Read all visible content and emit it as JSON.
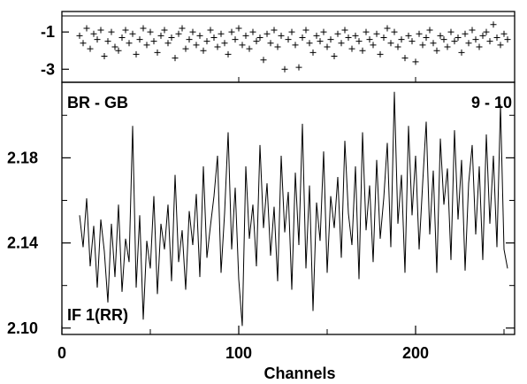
{
  "chart_data": [
    {
      "type": "scatter",
      "title": "",
      "xlabel": "",
      "ylabel": "",
      "xlim": [
        0,
        256
      ],
      "ylim": [
        -3.7,
        0.1
      ],
      "y_ticks": [
        -1,
        -3
      ],
      "y_tick_labels": [
        "-1",
        "-3"
      ],
      "marker": "+",
      "series": [
        {
          "x": [
            10,
            12,
            14,
            16,
            18,
            20,
            22,
            24,
            26,
            28,
            30,
            32,
            34,
            36,
            38,
            40,
            42,
            44,
            46,
            48,
            50,
            52,
            54,
            56,
            58,
            60,
            62,
            64,
            66,
            68,
            70,
            72,
            74,
            76,
            78,
            80,
            82,
            84,
            86,
            88,
            90,
            92,
            94,
            96,
            98,
            100,
            102,
            104,
            106,
            108,
            110,
            112,
            114,
            116,
            118,
            120,
            122,
            124,
            126,
            128,
            130,
            132,
            134,
            136,
            138,
            140,
            142,
            144,
            146,
            148,
            150,
            152,
            154,
            156,
            158,
            160,
            162,
            164,
            166,
            168,
            170,
            172,
            174,
            176,
            178,
            180,
            182,
            184,
            186,
            188,
            190,
            192,
            194,
            196,
            198,
            200,
            202,
            204,
            206,
            208,
            210,
            212,
            214,
            216,
            218,
            220,
            222,
            224,
            226,
            228,
            230,
            232,
            234,
            236,
            238,
            240,
            242,
            244,
            246,
            248,
            250,
            252
          ],
          "y": [
            -1.2,
            -1.6,
            -0.8,
            -1.9,
            -1.1,
            -1.4,
            -0.9,
            -2.3,
            -1.5,
            -1.0,
            -1.8,
            -2.0,
            -1.3,
            -0.9,
            -1.6,
            -1.1,
            -2.2,
            -1.4,
            -0.8,
            -1.7,
            -1.0,
            -1.5,
            -2.1,
            -1.2,
            -0.9,
            -1.6,
            -1.3,
            -2.4,
            -1.1,
            -0.8,
            -1.9,
            -1.4,
            -1.0,
            -1.7,
            -1.2,
            -2.0,
            -1.5,
            -0.9,
            -1.3,
            -1.8,
            -1.1,
            -1.6,
            -2.2,
            -1.0,
            -1.4,
            -0.8,
            -1.7,
            -1.2,
            -1.9,
            -1.0,
            -1.5,
            -1.3,
            -2.5,
            -1.1,
            -1.6,
            -0.9,
            -1.8,
            -1.2,
            -3.0,
            -1.4,
            -1.0,
            -1.7,
            -2.9,
            -1.3,
            -0.9,
            -1.6,
            -2.1,
            -1.2,
            -1.5,
            -1.0,
            -1.8,
            -1.4,
            -2.3,
            -1.1,
            -1.6,
            -0.9,
            -1.3,
            -1.9,
            -1.2,
            -1.5,
            -2.0,
            -1.0,
            -1.4,
            -1.7,
            -1.1,
            -2.2,
            -1.3,
            -0.8,
            -1.6,
            -1.0,
            -1.8,
            -1.4,
            -2.4,
            -1.2,
            -1.5,
            -2.6,
            -1.1,
            -1.7,
            -1.3,
            -0.9,
            -1.6,
            -2.0,
            -1.2,
            -1.4,
            -1.8,
            -1.0,
            -1.5,
            -1.3,
            -2.1,
            -1.1,
            -1.6,
            -0.9,
            -1.4,
            -1.8,
            -1.2,
            -1.0,
            -1.5,
            -0.6,
            -1.3,
            -1.7,
            -1.1,
            -1.4
          ]
        }
      ]
    },
    {
      "type": "line",
      "title": "",
      "xlabel": "Channels",
      "ylabel": "",
      "xlim": [
        0,
        256
      ],
      "ylim": [
        2.097,
        2.2155
      ],
      "x_ticks": [
        0,
        100,
        200
      ],
      "x_tick_labels": [
        "0",
        "100",
        "200"
      ],
      "y_ticks": [
        2.1,
        2.14,
        2.18
      ],
      "y_tick_labels": [
        "2.10",
        "2.14",
        "2.18"
      ],
      "annotations": {
        "top_left": "BR - GB",
        "top_right": "9 - 10",
        "bottom_left": "IF 1(RR)"
      },
      "series": [
        {
          "x": [
            10,
            12,
            14,
            16,
            18,
            20,
            22,
            24,
            26,
            28,
            30,
            32,
            34,
            36,
            38,
            40,
            42,
            44,
            46,
            48,
            50,
            52,
            54,
            56,
            58,
            60,
            62,
            64,
            66,
            68,
            70,
            72,
            74,
            76,
            78,
            80,
            82,
            84,
            86,
            88,
            90,
            92,
            94,
            96,
            98,
            100,
            102,
            104,
            106,
            108,
            110,
            112,
            114,
            116,
            118,
            120,
            122,
            124,
            126,
            128,
            130,
            132,
            134,
            136,
            138,
            140,
            142,
            144,
            146,
            148,
            150,
            152,
            154,
            156,
            158,
            160,
            162,
            164,
            166,
            168,
            170,
            172,
            174,
            176,
            178,
            180,
            182,
            184,
            186,
            188,
            190,
            192,
            194,
            196,
            198,
            200,
            202,
            204,
            206,
            208,
            210,
            212,
            214,
            216,
            218,
            220,
            222,
            224,
            226,
            228,
            230,
            232,
            234,
            236,
            238,
            240,
            242,
            244,
            246,
            248,
            250,
            252
          ],
          "values": [
            2.153,
            2.138,
            2.161,
            2.129,
            2.148,
            2.119,
            2.151,
            2.136,
            2.112,
            2.149,
            2.124,
            2.158,
            2.117,
            2.142,
            2.131,
            2.195,
            2.119,
            2.153,
            2.104,
            2.141,
            2.128,
            2.162,
            2.116,
            2.149,
            2.137,
            2.158,
            2.122,
            2.172,
            2.131,
            2.146,
            2.118,
            2.155,
            2.139,
            2.163,
            2.124,
            2.176,
            2.133,
            2.148,
            2.162,
            2.181,
            2.126,
            2.154,
            2.192,
            2.137,
            2.166,
            2.123,
            2.101,
            2.176,
            2.142,
            2.158,
            2.129,
            2.186,
            2.147,
            2.168,
            2.134,
            2.157,
            2.122,
            2.181,
            2.145,
            2.164,
            2.118,
            2.173,
            2.139,
            2.196,
            2.128,
            2.167,
            2.108,
            2.159,
            2.141,
            2.183,
            2.126,
            2.162,
            2.147,
            2.171,
            2.133,
            2.188,
            2.154,
            2.139,
            2.176,
            2.123,
            2.192,
            2.146,
            2.167,
            2.131,
            2.179,
            2.142,
            2.161,
            2.187,
            2.138,
            2.211,
            2.149,
            2.172,
            2.126,
            2.195,
            2.153,
            2.181,
            2.137,
            2.168,
            2.197,
            2.144,
            2.174,
            2.126,
            2.189,
            2.158,
            2.175,
            2.132,
            2.193,
            2.151,
            2.179,
            2.127,
            2.168,
            2.186,
            2.144,
            2.176,
            2.132,
            2.191,
            2.149,
            2.181,
            2.138,
            2.205,
            2.137,
            2.128
          ]
        }
      ]
    }
  ]
}
